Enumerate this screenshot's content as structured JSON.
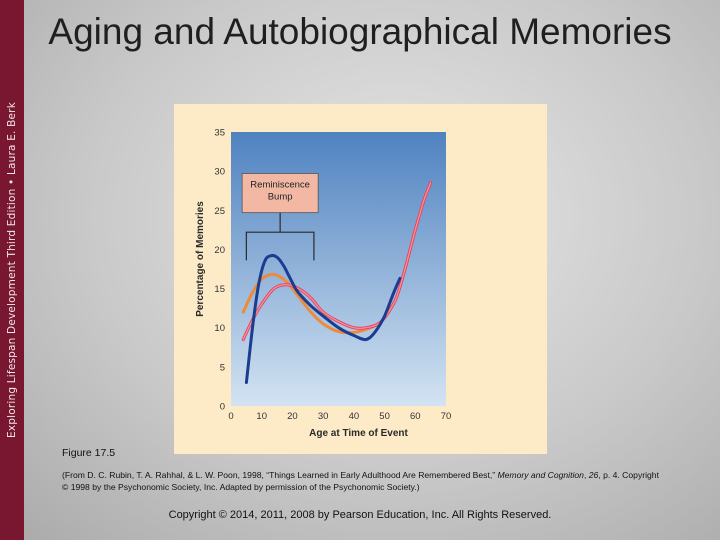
{
  "sidebar": {
    "text": "Exploring Lifespan Development Third Edition • Laura E. Berk"
  },
  "slide": {
    "title": "Aging and Autobiographical Memories",
    "figure_label": "Figure 17.5",
    "citation_part1": "(From D. C. Rubin, T. A. Rahhal, & L. W. Poon, 1998, “Things Learned in Early Adulthood Are Remembered Best,” ",
    "citation_journal1": "Memory and Cognition",
    "citation_sep": ", ",
    "citation_volume": "26",
    "citation_part2": ", p. 4. Copyright © 1998 by the Psychonomic Society, Inc. Adapted by permission of the Psychonomic Society.)",
    "copyright": "Copyright © 2014, 2011, 2008 by Pearson Education, Inc. All Rights Reserved."
  },
  "colors": {
    "sidebar": "#7a1730",
    "plot_top": "#4f82c0",
    "plot_bottom": "#d3e3f2",
    "figure_bg": "#fdebc8",
    "series_blue": "#1a3d8f",
    "series_orange": "#ee8a3c",
    "series_pink": "#e8376a",
    "series_pale": "#f6dfa6",
    "callout_fill": "#f2b8a4"
  },
  "chart_data": {
    "type": "line",
    "title": "",
    "xlabel": "Age at Time of Event",
    "ylabel": "Percentage of Memories",
    "xlim": [
      0,
      70
    ],
    "ylim": [
      0,
      35
    ],
    "x_ticks": [
      0,
      10,
      20,
      30,
      40,
      50,
      60,
      70
    ],
    "y_ticks": [
      0,
      5,
      10,
      15,
      20,
      25,
      30,
      35
    ],
    "grid": false,
    "annotation": {
      "text_line1": "Reminiscence",
      "text_line2": "Bump",
      "bracket_x": [
        5,
        27
      ]
    },
    "series": [
      {
        "color": "#1a3d8f",
        "x": [
          5,
          7,
          9,
          11,
          13,
          15,
          17,
          19,
          21,
          23,
          26,
          30,
          35,
          40,
          44,
          47,
          50,
          53,
          55
        ],
        "y": [
          3,
          10,
          15.5,
          18.5,
          19.2,
          19,
          18,
          16.5,
          15,
          14,
          12.8,
          11.5,
          10,
          9,
          8.5,
          9.5,
          11.5,
          14.5,
          16.3
        ]
      },
      {
        "color": "#ee8a3c",
        "x": [
          4,
          7,
          10,
          13,
          16,
          19,
          22,
          26,
          30,
          35,
          40,
          44,
          48,
          51,
          54,
          57,
          60,
          63,
          65
        ],
        "y": [
          12,
          14.5,
          16.2,
          16.8,
          16.5,
          15.5,
          14,
          12,
          10.5,
          9.5,
          9.4,
          9.8,
          10.5,
          11.8,
          14,
          18,
          22.5,
          26.5,
          28.5
        ]
      },
      {
        "color": "#e8376a",
        "x": [
          4,
          7,
          10,
          14,
          18,
          22,
          26,
          30,
          35,
          40,
          44,
          48,
          51,
          54,
          57,
          60,
          63,
          65
        ],
        "y": [
          8.5,
          11,
          13,
          15,
          15.5,
          15,
          13.8,
          12,
          10.8,
          10,
          10,
          10.5,
          11.8,
          14,
          18,
          22.5,
          26.5,
          28.5
        ]
      }
    ]
  }
}
